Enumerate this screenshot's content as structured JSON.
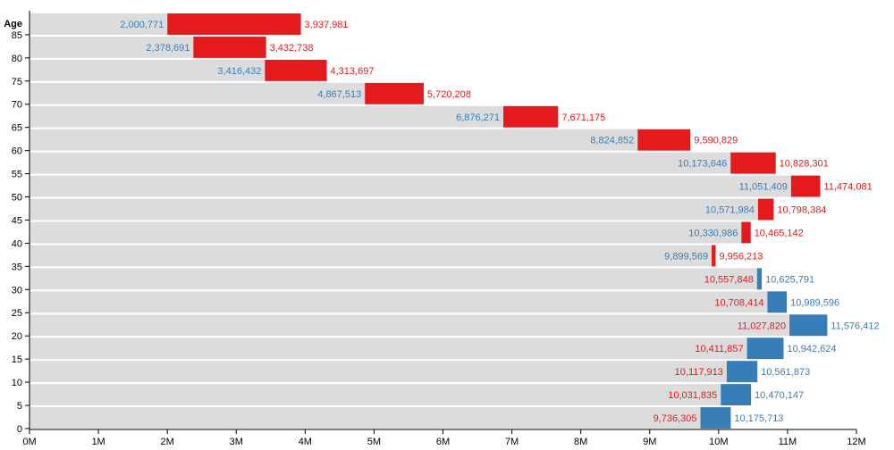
{
  "chart_data": {
    "type": "bar",
    "ylabel": "Age",
    "xlim": [
      0,
      12000000
    ],
    "x_ticks": [
      {
        "value": 0,
        "label": "0M"
      },
      {
        "value": 1000000,
        "label": "1M"
      },
      {
        "value": 2000000,
        "label": "2M"
      },
      {
        "value": 3000000,
        "label": "3M"
      },
      {
        "value": 4000000,
        "label": "4M"
      },
      {
        "value": 5000000,
        "label": "5M"
      },
      {
        "value": 6000000,
        "label": "6M"
      },
      {
        "value": 7000000,
        "label": "7M"
      },
      {
        "value": 8000000,
        "label": "8M"
      },
      {
        "value": 9000000,
        "label": "9M"
      },
      {
        "value": 10000000,
        "label": "10M"
      },
      {
        "value": 11000000,
        "label": "11M"
      },
      {
        "value": 12000000,
        "label": "12M"
      }
    ],
    "y_ticks": [
      "0",
      "5",
      "10",
      "15",
      "20",
      "25",
      "30",
      "35",
      "40",
      "45",
      "50",
      "55",
      "60",
      "65",
      "70",
      "75",
      "80",
      "85"
    ],
    "colors": {
      "background_bar": "#dcdcdc",
      "red": "#e41a1c",
      "blue": "#377eb8"
    },
    "rows": [
      {
        "age": 0,
        "blue": 10175713,
        "red": 9736305,
        "blue_label": "10,175,713",
        "red_label": "9,736,305"
      },
      {
        "age": 5,
        "blue": 10470147,
        "red": 10031835,
        "blue_label": "10,470,147",
        "red_label": "10,031,835"
      },
      {
        "age": 10,
        "blue": 10561873,
        "red": 10117913,
        "blue_label": "10,561,873",
        "red_label": "10,117,913"
      },
      {
        "age": 15,
        "blue": 10942624,
        "red": 10411857,
        "blue_label": "10,942,624",
        "red_label": "10,411,857"
      },
      {
        "age": 20,
        "blue": 11576412,
        "red": 11027820,
        "blue_label": "11,576,412",
        "red_label": "11,027,820"
      },
      {
        "age": 25,
        "blue": 10989596,
        "red": 10708414,
        "blue_label": "10,989,596",
        "red_label": "10,708,414"
      },
      {
        "age": 30,
        "blue": 10625791,
        "red": 10557848,
        "blue_label": "10,625,791",
        "red_label": "10,557,848"
      },
      {
        "age": 35,
        "blue": 9899569,
        "red": 9956213,
        "blue_label": "9,899,569",
        "red_label": "9,956,213"
      },
      {
        "age": 40,
        "blue": 10330986,
        "red": 10465142,
        "blue_label": "10,330,986",
        "red_label": "10,465,142"
      },
      {
        "age": 45,
        "blue": 10571984,
        "red": 10798384,
        "blue_label": "10,571,984",
        "red_label": "10,798,384"
      },
      {
        "age": 50,
        "blue": 11051409,
        "red": 11474081,
        "blue_label": "11,051,409",
        "red_label": "11,474,081"
      },
      {
        "age": 55,
        "blue": 10173646,
        "red": 10828301,
        "blue_label": "10,173,646",
        "red_label": "10,828,301"
      },
      {
        "age": 60,
        "blue": 8824852,
        "red": 9590829,
        "blue_label": "8,824,852",
        "red_label": "9,590,829"
      },
      {
        "age": 65,
        "blue": 6876271,
        "red": 7671175,
        "blue_label": "6,876,271",
        "red_label": "7,671,175"
      },
      {
        "age": 70,
        "blue": 4867513,
        "red": 5720208,
        "blue_label": "4,867,513",
        "red_label": "5,720,208"
      },
      {
        "age": 75,
        "blue": 3416432,
        "red": 4313697,
        "blue_label": "3,416,432",
        "red_label": "4,313,697"
      },
      {
        "age": 80,
        "blue": 2378691,
        "red": 3432738,
        "blue_label": "2,378,691",
        "red_label": "3,432,738"
      },
      {
        "age": 85,
        "blue": 2000771,
        "red": 3937981,
        "blue_label": "2,000,771",
        "red_label": "3,937,981"
      }
    ]
  }
}
